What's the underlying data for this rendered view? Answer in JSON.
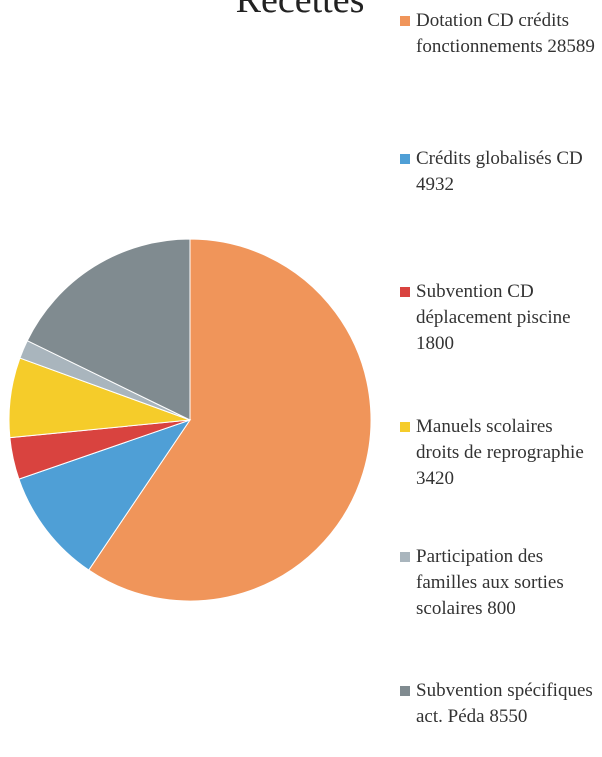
{
  "chart_data": {
    "type": "pie",
    "title": "Recettes",
    "categories": [
      "Dotation CD crédits fonctionnements",
      "Crédits globalisés CD",
      "Subvention CD déplacement piscine",
      "Manuels scolaires droits de reprographie",
      "Participation des familles aux sorties scolaires",
      "Subvention spécifiques act. Péda"
    ],
    "values": [
      28589,
      4932,
      1800,
      3420,
      800,
      8550
    ],
    "colors": [
      "#f0955a",
      "#4f9fd6",
      "#d9433f",
      "#f5cc2a",
      "#a9b5bd",
      "#808b90"
    ],
    "legend": "right"
  }
}
